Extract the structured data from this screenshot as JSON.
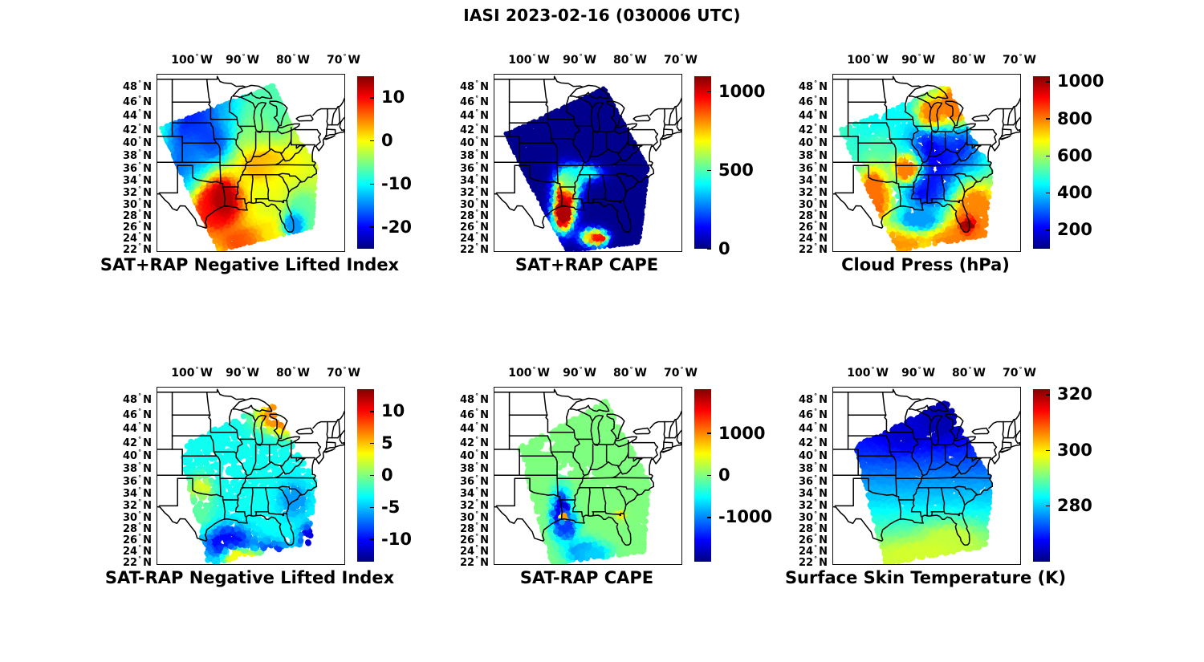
{
  "figure": {
    "title": "IASI 2023-02-16 (030006 UTC)"
  },
  "axes": {
    "lon_min": -107,
    "lon_max": -70,
    "lat_min": 21.7,
    "lat_max": 49.6,
    "projection": "mercator",
    "lon_ticks": [
      {
        "value": -100,
        "deg": "100",
        "hem": "W"
      },
      {
        "value": -90,
        "deg": "90",
        "hem": "W"
      },
      {
        "value": -80,
        "deg": "80",
        "hem": "W"
      },
      {
        "value": -70,
        "deg": "70",
        "hem": "W"
      }
    ],
    "lat_ticks": [
      {
        "value": 48,
        "deg": "48",
        "hem": "N"
      },
      {
        "value": 46,
        "deg": "46",
        "hem": "N"
      },
      {
        "value": 44,
        "deg": "44",
        "hem": "N"
      },
      {
        "value": 42,
        "deg": "42",
        "hem": "N"
      },
      {
        "value": 40,
        "deg": "40",
        "hem": "N"
      },
      {
        "value": 38,
        "deg": "38",
        "hem": "N"
      },
      {
        "value": 36,
        "deg": "36",
        "hem": "N"
      },
      {
        "value": 34,
        "deg": "34",
        "hem": "N"
      },
      {
        "value": 32,
        "deg": "32",
        "hem": "N"
      },
      {
        "value": 30,
        "deg": "30",
        "hem": "N"
      },
      {
        "value": 28,
        "deg": "28",
        "hem": "N"
      },
      {
        "value": 26,
        "deg": "26",
        "hem": "N"
      },
      {
        "value": 24,
        "deg": "24",
        "hem": "N"
      },
      {
        "value": 22,
        "deg": "22",
        "hem": "N"
      }
    ]
  },
  "chart_data": [
    {
      "type": "scatter-map",
      "grid_position": "row1-col1",
      "title": "SAT+RAP Negative Lifted Index",
      "colormap": "jet",
      "colorbar": {
        "min": -25,
        "max": 15,
        "ticks": [
          10,
          0,
          -10,
          -20
        ]
      },
      "swath_polygon": [
        [
          -106.3,
          42.3
        ],
        [
          -84,
          48.3
        ],
        [
          -79.8,
          41.5
        ],
        [
          -75.5,
          36.3
        ],
        [
          -76.3,
          26.0
        ],
        [
          -94.8,
          21.8
        ]
      ],
      "field": {
        "base": -2,
        "blobs": [
          [
            -97.5,
            41.5,
            5,
            4,
            -20
          ],
          [
            -91,
            44.5,
            4,
            2.5,
            -14
          ],
          [
            -86.5,
            43.5,
            3,
            3,
            -8
          ],
          [
            -84,
            46.5,
            4,
            2,
            -7
          ],
          [
            -100.5,
            36,
            3,
            4,
            -16
          ],
          [
            -87.5,
            40,
            3,
            3,
            -5
          ],
          [
            -95.2,
            29.5,
            3.5,
            3.5,
            9
          ],
          [
            -93.8,
            31,
            1.8,
            2.2,
            13
          ],
          [
            -89,
            23.5,
            4,
            1.8,
            7
          ],
          [
            -85.5,
            36.5,
            4,
            2,
            3
          ],
          [
            -81,
            33,
            3,
            3,
            0
          ],
          [
            -78.2,
            28.5,
            2.5,
            3,
            -6
          ],
          [
            -83,
            25,
            3,
            2,
            1
          ],
          [
            -80,
            26.5,
            1.5,
            1.5,
            -14
          ]
        ]
      },
      "render": {
        "count": 9000,
        "radius": 2.8,
        "seed": 11
      }
    },
    {
      "type": "scatter-map",
      "grid_position": "row1-col2",
      "title": "SAT+RAP CAPE",
      "colormap": "jet",
      "colorbar": {
        "min": 0,
        "max": 1100,
        "ticks": [
          1000,
          500,
          0
        ]
      },
      "swath_polygon": [
        [
          -104.8,
          41.4
        ],
        [
          -85.3,
          47.9
        ],
        [
          -79.9,
          41.0
        ],
        [
          -76.6,
          36.0
        ],
        [
          -78.4,
          23.2
        ],
        [
          -92.6,
          21.7
        ]
      ],
      "field": {
        "base": 15,
        "blobs": [
          [
            -92.9,
            31.8,
            1.4,
            2.2,
            1050
          ],
          [
            -93.4,
            28.3,
            1.3,
            2.0,
            1050
          ],
          [
            -91.9,
            33.8,
            1.5,
            1.3,
            550
          ],
          [
            -89.3,
            35.3,
            2.2,
            0.9,
            420
          ],
          [
            -87.6,
            24.3,
            1.6,
            1.0,
            700
          ],
          [
            -86.3,
            24.0,
            1.0,
            0.7,
            950
          ]
        ]
      },
      "render": {
        "count": 9000,
        "radius": 2.8,
        "seed": 22
      }
    },
    {
      "type": "scatter-map",
      "grid_position": "row1-col3",
      "title": "Cloud Press (hPa)",
      "colormap": "jet",
      "colorbar": {
        "min": 100,
        "max": 1030,
        "ticks": [
          1000,
          800,
          600,
          400,
          200
        ]
      },
      "swath_polygon": [
        [
          -105.5,
          42.0
        ],
        [
          -84.5,
          48.2
        ],
        [
          -79.6,
          41.0
        ],
        [
          -75.6,
          36.0
        ],
        [
          -77.0,
          24.5
        ],
        [
          -94.0,
          21.8
        ]
      ],
      "field": {
        "base": 520,
        "blobs": [
          [
            -95,
            41,
            5,
            3.5,
            420
          ],
          [
            -90.5,
            43,
            4,
            3,
            460
          ],
          [
            -97.5,
            37.5,
            3,
            3,
            520
          ],
          [
            -85,
            38.5,
            4,
            4,
            180
          ],
          [
            -88,
            33.5,
            3,
            3,
            210
          ],
          [
            -81.5,
            34.5,
            3,
            3,
            190
          ],
          [
            -84.5,
            41.5,
            2,
            2,
            240
          ],
          [
            -79,
            27.5,
            3.5,
            5,
            790
          ],
          [
            -83.5,
            24.5,
            4,
            2,
            800
          ],
          [
            -93,
            24,
            3,
            2,
            780
          ],
          [
            -90,
            27.5,
            3,
            1.5,
            360
          ],
          [
            -98.8,
            30.5,
            2,
            2.5,
            820
          ],
          [
            -92.5,
            36,
            1.8,
            1.5,
            800
          ],
          [
            -87.5,
            44.5,
            2,
            1.5,
            790
          ],
          [
            -83,
            45.5,
            2.5,
            2,
            800
          ],
          [
            -80.3,
            26.5,
            0.9,
            0.9,
            1010
          ],
          [
            -99,
            33,
            1.5,
            2,
            810
          ]
        ]
      },
      "render": {
        "count": 3000,
        "radius": 3.4,
        "seed": 33
      }
    },
    {
      "type": "scatter-map",
      "grid_position": "row2-col1",
      "title": "SAT-RAP Negative Lifted Index",
      "colormap": "jet",
      "colorbar": {
        "min": -13.5,
        "max": 13.5,
        "ticks": [
          10,
          5,
          0,
          -5,
          -10
        ]
      },
      "swath_polygon": [
        [
          -102.5,
          41.5
        ],
        [
          -84.5,
          47.8
        ],
        [
          -79.8,
          41.2
        ],
        [
          -75.8,
          36.2
        ],
        [
          -76.8,
          25.5
        ],
        [
          -96.8,
          21.8
        ]
      ],
      "field": {
        "base": -3,
        "blobs": [
          [
            -83,
            45.8,
            3,
            1.4,
            6
          ],
          [
            -80.5,
            45.3,
            2,
            1.4,
            7
          ],
          [
            -98.5,
            34.5,
            1.5,
            1.5,
            3
          ],
          [
            -93,
            25.5,
            3,
            2,
            -10
          ],
          [
            -85,
            23.5,
            3,
            1.5,
            -9
          ],
          [
            -76.5,
            26.5,
            1.5,
            1.5,
            -11
          ],
          [
            -88,
            22.5,
            2,
            1,
            5
          ],
          [
            -85.5,
            22.3,
            1,
            0.7,
            8
          ],
          [
            -91,
            23,
            2,
            1,
            3
          ],
          [
            -80,
            33,
            2,
            2,
            -6
          ],
          [
            -99,
            31,
            2,
            2,
            -1
          ]
        ]
      },
      "render": {
        "count": 1500,
        "radius": 3.8,
        "seed": 44
      }
    },
    {
      "type": "scatter-map",
      "grid_position": "row2-col2",
      "title": "SAT-RAP CAPE",
      "colormap": "jet",
      "colorbar": {
        "min": -2050,
        "max": 2050,
        "ticks": [
          1000,
          0,
          -1000
        ]
      },
      "swath_polygon": [
        [
          -102,
          41.3
        ],
        [
          -85,
          47.8
        ],
        [
          -79.9,
          41.0
        ],
        [
          -76.5,
          36.0
        ],
        [
          -77.5,
          24.0
        ],
        [
          -95.5,
          21.8
        ]
      ],
      "field": {
        "base": 0,
        "blobs": [
          [
            -93.8,
            30.8,
            1.2,
            2.4,
            -1700
          ],
          [
            -92.8,
            28.4,
            1.4,
            1.4,
            -1300
          ],
          [
            -89.5,
            24,
            2.4,
            1.4,
            -900
          ],
          [
            -87,
            23.5,
            2,
            1,
            -700
          ],
          [
            -93.4,
            30.2,
            0.4,
            0.5,
            900
          ],
          [
            -82,
            30.4,
            0.7,
            0.5,
            600
          ],
          [
            -83.5,
            22.3,
            1,
            0.5,
            700
          ]
        ],
        "holes": [
          [
            -93.0,
            38.0,
            2.0,
            1.5
          ],
          [
            -96.3,
            41.3,
            1.5,
            1.2
          ],
          [
            -88.5,
            37.5,
            1.2,
            1.0
          ]
        ]
      },
      "render": {
        "count": 3000,
        "radius": 3.8,
        "seed": 55
      }
    },
    {
      "type": "scatter-map",
      "grid_position": "row2-col3",
      "title": "Surface Skin Temperature (K)",
      "colormap": "jet",
      "colorbar": {
        "min": 260,
        "max": 322,
        "ticks": [
          320,
          300,
          280
        ]
      },
      "swath_polygon": [
        [
          -102.5,
          41.5
        ],
        [
          -84.5,
          47.9
        ],
        [
          -79.8,
          41.2
        ],
        [
          -75.8,
          36.2
        ],
        [
          -76.8,
          25.0
        ],
        [
          -96.5,
          21.8
        ]
      ],
      "field": {
        "base": 280,
        "lat_stops": [
          [
            48,
            265
          ],
          [
            44,
            266
          ],
          [
            40,
            271
          ],
          [
            36,
            277
          ],
          [
            32,
            282
          ],
          [
            28,
            288
          ],
          [
            24,
            294
          ],
          [
            22,
            296
          ]
        ],
        "blobs": [
          [
            -86,
            45.5,
            3,
            2,
            263
          ],
          [
            -93,
            44,
            3,
            2,
            265
          ],
          [
            -84,
            26,
            4,
            2,
            295
          ],
          [
            -90,
            23.5,
            5,
            1.5,
            296
          ]
        ]
      },
      "render": {
        "count": 3200,
        "radius": 3.8,
        "seed": 66
      }
    }
  ]
}
